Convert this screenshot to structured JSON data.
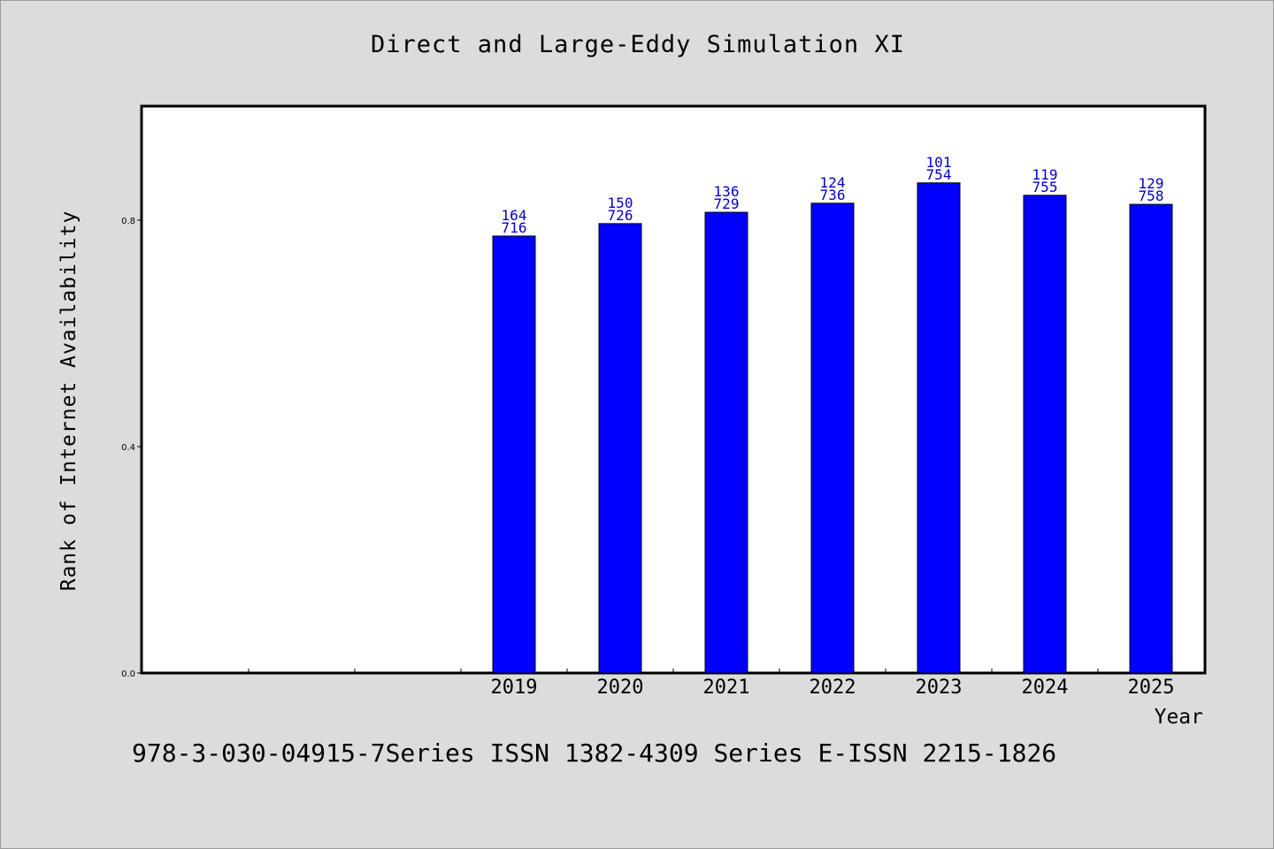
{
  "chart_data": {
    "type": "bar",
    "title": "Direct and Large-Eddy Simulation XI",
    "xlabel": "Year",
    "ylabel": "Rank of Internet Availability",
    "x_axis_slots": 10,
    "categories": [
      "2019",
      "2020",
      "2021",
      "2022",
      "2023",
      "2024",
      "2025"
    ],
    "first_category_slot": 3,
    "values": [
      0.772,
      0.794,
      0.814,
      0.83,
      0.866,
      0.844,
      0.828
    ],
    "bar_labels_top": [
      "164",
      "150",
      "136",
      "124",
      "101",
      "119",
      "129"
    ],
    "bar_labels_bottom": [
      "716",
      "726",
      "729",
      "736",
      "754",
      "755",
      "758"
    ],
    "yticks": [
      0.0,
      0.4,
      0.8
    ],
    "ytick_labels": [
      "0.0",
      "0.4",
      "0.8"
    ],
    "ylim": [
      0.0,
      1.0
    ],
    "grid": false,
    "bar_color": "#0000ff",
    "label_color": "#0000cc"
  },
  "footer": {
    "text": "978-3-030-04915-7Series ISSN 1382-4309 Series E-ISSN 2215-1826"
  }
}
